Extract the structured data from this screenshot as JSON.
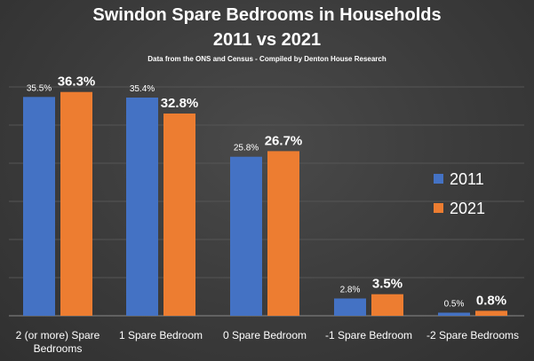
{
  "header": {
    "title_line_1": "Swindon Spare Bedrooms in Households",
    "title_line_2": "2011 vs 2021",
    "subtitle": "Data from the ONS and Census - Compiled by Denton House Research"
  },
  "chart_data": {
    "type": "bar",
    "title": "Swindon Spare Bedrooms in Households 2011 vs 2021",
    "subtitle": "Data from the ONS and Census - Compiled by Denton House Research",
    "categories": [
      [
        "2 (or more) Spare",
        "Bedrooms"
      ],
      [
        "1 Spare Bedroom"
      ],
      [
        "0 Spare Bedroom"
      ],
      [
        "-1 Spare Bedroom"
      ],
      [
        "-2 Spare Bedrooms"
      ]
    ],
    "series": [
      {
        "name": "2011",
        "color": "#4472c4",
        "values": [
          35.5,
          35.4,
          25.8,
          2.8,
          0.5
        ],
        "labels": [
          "35.5%",
          "35.4%",
          "25.8%",
          "2.8%",
          "0.5%"
        ]
      },
      {
        "name": "2021",
        "color": "#ed7d31",
        "values": [
          36.3,
          32.8,
          26.7,
          3.5,
          0.8
        ],
        "labels": [
          "36.3%",
          "32.8%",
          "26.7%",
          "3.5%",
          "0.8%"
        ]
      }
    ],
    "ylim": [
      0,
      40
    ],
    "grid": true,
    "legend": "right",
    "xlabel": "",
    "ylabel": ""
  }
}
